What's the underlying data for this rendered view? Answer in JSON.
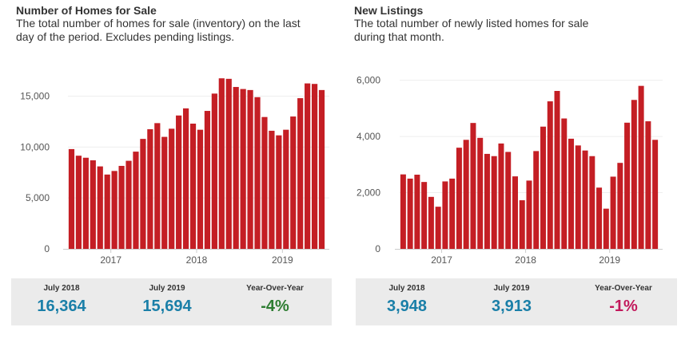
{
  "panels": [
    {
      "title": "Number of Homes for Sale",
      "subtitle": "The total number of homes for sale (inventory) on the last\nday of the period. Excludes pending listings.",
      "stats": [
        {
          "label": "July 2018",
          "value": "16,364",
          "color": "#1a7fa8"
        },
        {
          "label": "July 2019",
          "value": "15,694",
          "color": "#1a7fa8"
        },
        {
          "label": "Year-Over-Year",
          "value": "-4%",
          "color": "#2e7d32"
        }
      ]
    },
    {
      "title": "New Listings",
      "subtitle": "The total number of newly listed homes for sale\nduring that month.",
      "stats": [
        {
          "label": "July 2018",
          "value": "3,948",
          "color": "#1a7fa8"
        },
        {
          "label": "July 2019",
          "value": "3,913",
          "color": "#1a7fa8"
        },
        {
          "label": "Year-Over-Year",
          "value": "-1%",
          "color": "#c2185b"
        }
      ]
    }
  ],
  "chart_data": [
    {
      "type": "bar",
      "title": "Number of Homes for Sale",
      "bar_color": "#c41e24",
      "ylim": [
        0,
        17000
      ],
      "yticks": [
        0,
        5000,
        10000,
        15000
      ],
      "ytick_labels": [
        "0",
        "5,000",
        "10,000",
        "15,000"
      ],
      "xtick_labels": [
        "2017",
        "2018",
        "2019"
      ],
      "xtick_positions": [
        6,
        18,
        30
      ],
      "grid": true,
      "values": [
        9800,
        9150,
        8950,
        8700,
        8100,
        7300,
        7650,
        8150,
        8650,
        9550,
        10800,
        11750,
        12350,
        11000,
        11800,
        13100,
        13800,
        12300,
        11700,
        13550,
        15250,
        16750,
        16700,
        15900,
        15700,
        15600,
        14900,
        12950,
        11600,
        11150,
        11700,
        13000,
        14800,
        16250,
        16200,
        15600
      ]
    },
    {
      "type": "bar",
      "title": "New Listings",
      "bar_color": "#c41e24",
      "ylim": [
        0,
        6500
      ],
      "yticks": [
        0,
        2000,
        4000,
        6000
      ],
      "ytick_labels": [
        "0",
        "2,000",
        "4,000",
        "6,000"
      ],
      "xtick_labels": [
        "2017",
        "2018",
        "2019"
      ],
      "xtick_positions": [
        6,
        18,
        30
      ],
      "grid": true,
      "values": [
        2650,
        2500,
        2640,
        2380,
        1850,
        1500,
        2400,
        2500,
        3600,
        3880,
        4480,
        3950,
        3380,
        3300,
        3750,
        3450,
        2580,
        1730,
        2430,
        3480,
        4350,
        5250,
        5620,
        4640,
        3920,
        3680,
        3500,
        3300,
        2180,
        1430,
        2570,
        3060,
        4490,
        5300,
        5800,
        4540,
        3880
      ]
    }
  ]
}
